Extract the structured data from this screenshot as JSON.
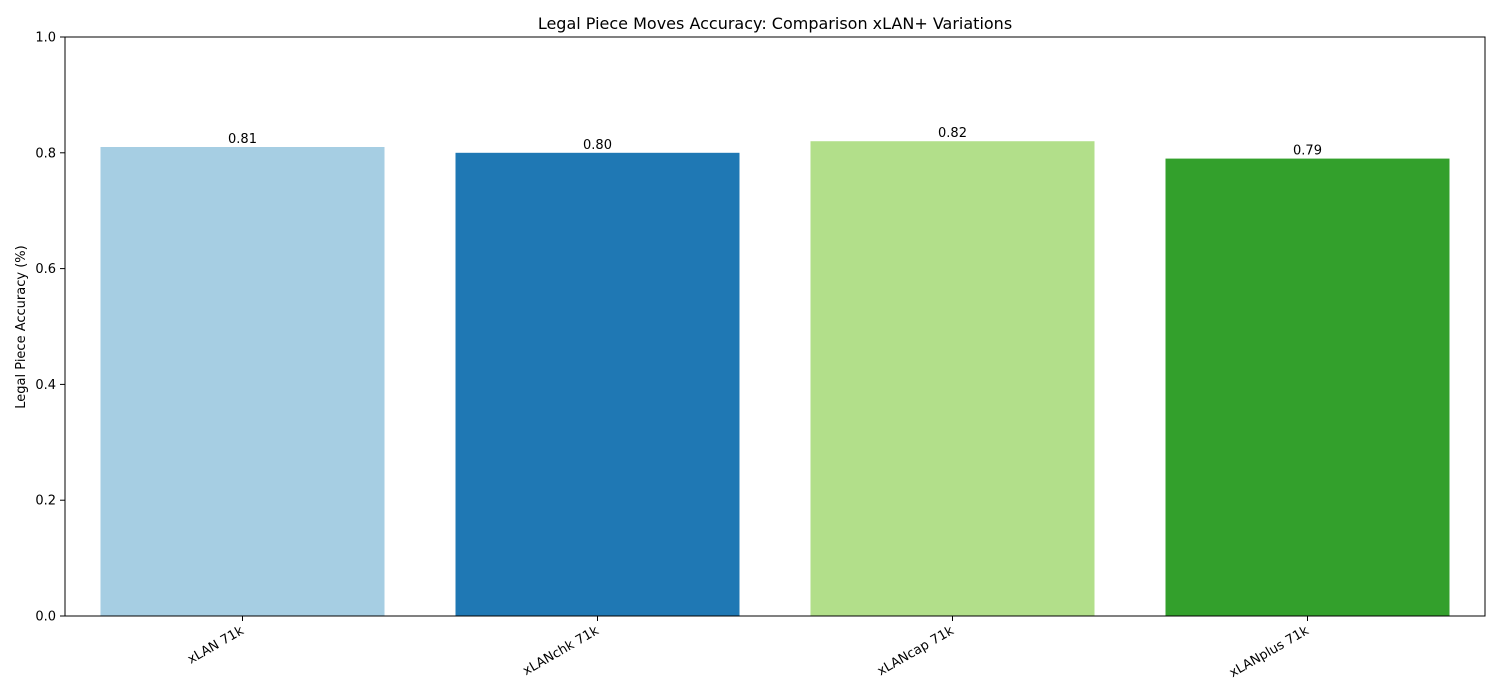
{
  "chart_data": {
    "type": "bar",
    "title": "Legal Piece Moves Accuracy: Comparison xLAN+ Variations",
    "xlabel": "",
    "ylabel": "Legal Piece Accuracy (%)",
    "ylim": [
      0,
      1.0
    ],
    "yticks": [
      "0.0",
      "0.2",
      "0.4",
      "0.6",
      "0.8",
      "1.0"
    ],
    "ytick_values": [
      0,
      0.2,
      0.4,
      0.6,
      0.8,
      1.0
    ],
    "categories": [
      "xLAN 71k",
      "xLANchk 71k",
      "xLANcap 71k",
      "xLANplus 71k"
    ],
    "values": [
      0.81,
      0.8,
      0.82,
      0.79
    ],
    "value_labels": [
      "0.81",
      "0.80",
      "0.82",
      "0.79"
    ],
    "colors": [
      "#a6cee3",
      "#1f78b4",
      "#b2df8a",
      "#33a02c"
    ],
    "grid": false,
    "legend": "none"
  }
}
